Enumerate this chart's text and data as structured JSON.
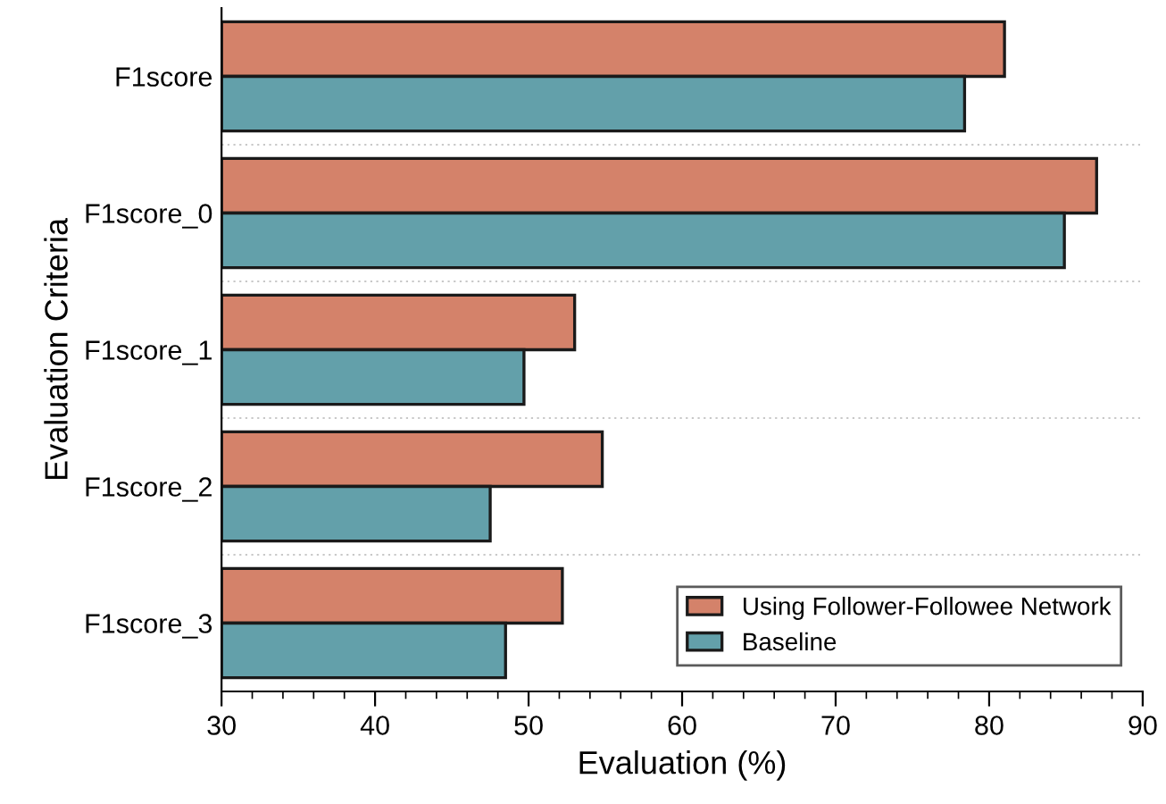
{
  "chart_data": {
    "type": "bar",
    "orientation": "horizontal",
    "xlabel": "Evaluation (%)",
    "ylabel": "Evaluation Criteria",
    "categories": [
      "F1score",
      "F1score_0",
      "F1score_1",
      "F1score_2",
      "F1score_3"
    ],
    "series": [
      {
        "name": "Using Follower-Followee Network",
        "color": "#d4826a",
        "values": [
          81.0,
          87.0,
          53.0,
          54.8,
          52.2
        ]
      },
      {
        "name": "Baseline",
        "color": "#63a0aa",
        "values": [
          78.4,
          84.9,
          49.7,
          47.5,
          48.5
        ]
      }
    ],
    "xlim": [
      30,
      90
    ],
    "xticks": [
      30,
      40,
      50,
      60,
      70,
      80,
      90
    ],
    "grid": "y",
    "legend": "bottom right"
  }
}
